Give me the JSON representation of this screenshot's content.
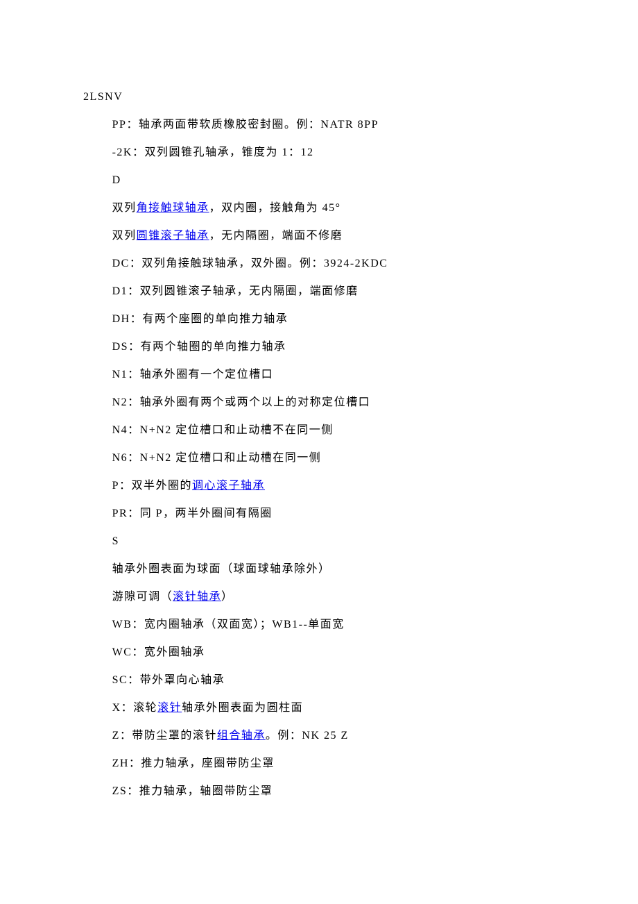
{
  "doc": {
    "header": "2LSNV",
    "lines": [
      {
        "idx": 0,
        "segments": [
          {
            "t": "PP：轴承两面带软质橡胶密封圈。例：NATR 8PP"
          }
        ]
      },
      {
        "idx": 1,
        "segments": [
          {
            "t": "-2K：双列圆锥孔轴承，锥度为 1：12"
          }
        ]
      },
      {
        "idx": 2,
        "segments": [
          {
            "t": "D"
          }
        ]
      },
      {
        "idx": 3,
        "segments": [
          {
            "t": "双列"
          },
          {
            "t": "角接触球轴承",
            "link": true
          },
          {
            "t": "，双内圈，接触角为 45°"
          }
        ]
      },
      {
        "idx": 4,
        "segments": [
          {
            "t": "双列"
          },
          {
            "t": "圆锥滚子轴承",
            "link": true
          },
          {
            "t": "，无内隔圈，端面不修磨"
          }
        ]
      },
      {
        "idx": 5,
        "segments": [
          {
            "t": "DC：双列角接触球轴承，双外圈。例：3924-2KDC"
          }
        ]
      },
      {
        "idx": 6,
        "segments": [
          {
            "t": "D1：双列圆锥滚子轴承，无内隔圈，端面修磨"
          }
        ]
      },
      {
        "idx": 7,
        "segments": [
          {
            "t": "DH：有两个座圈的单向推力轴承"
          }
        ]
      },
      {
        "idx": 8,
        "segments": [
          {
            "t": "DS：有两个轴圈的单向推力轴承"
          }
        ]
      },
      {
        "idx": 9,
        "segments": [
          {
            "t": "N1：轴承外圈有一个定位槽口"
          }
        ]
      },
      {
        "idx": 10,
        "segments": [
          {
            "t": "N2：轴承外圈有两个或两个以上的对称定位槽口"
          }
        ]
      },
      {
        "idx": 11,
        "segments": [
          {
            "t": "N4：N+N2 定位槽口和止动槽不在同一侧"
          }
        ]
      },
      {
        "idx": 12,
        "segments": [
          {
            "t": "N6：N+N2 定位槽口和止动槽在同一侧"
          }
        ]
      },
      {
        "idx": 13,
        "segments": [
          {
            "t": "P：双半外圈的"
          },
          {
            "t": "调心滚子轴承",
            "link": true
          }
        ]
      },
      {
        "idx": 14,
        "segments": [
          {
            "t": "PR：同 P，两半外圈间有隔圈"
          }
        ]
      },
      {
        "idx": 15,
        "segments": [
          {
            "t": "S"
          }
        ]
      },
      {
        "idx": 16,
        "segments": [
          {
            "t": "轴承外圈表面为球面（球面球轴承除外）"
          }
        ]
      },
      {
        "idx": 17,
        "segments": [
          {
            "t": "游隙可调（"
          },
          {
            "t": "滚针轴承",
            "link": true
          },
          {
            "t": "）"
          }
        ]
      },
      {
        "idx": 18,
        "segments": [
          {
            "t": "WB：宽内圈轴承（双面宽）；WB1--单面宽"
          }
        ]
      },
      {
        "idx": 19,
        "segments": [
          {
            "t": "WC：宽外圈轴承"
          }
        ]
      },
      {
        "idx": 20,
        "segments": [
          {
            "t": "SC：带外罩向心轴承"
          }
        ]
      },
      {
        "idx": 21,
        "segments": [
          {
            "t": "X：滚轮"
          },
          {
            "t": "滚针",
            "link": true
          },
          {
            "t": "轴承外圈表面为圆柱面"
          }
        ]
      },
      {
        "idx": 22,
        "segments": [
          {
            "t": "Z：带防尘罩的滚针"
          },
          {
            "t": "组合轴承",
            "link": true
          },
          {
            "t": "。例：NK 25 Z"
          }
        ]
      },
      {
        "idx": 23,
        "segments": [
          {
            "t": "ZH：推力轴承，座圈带防尘罩"
          }
        ]
      },
      {
        "idx": 24,
        "segments": [
          {
            "t": "ZS：推力轴承，轴圈带防尘罩"
          }
        ]
      }
    ]
  }
}
